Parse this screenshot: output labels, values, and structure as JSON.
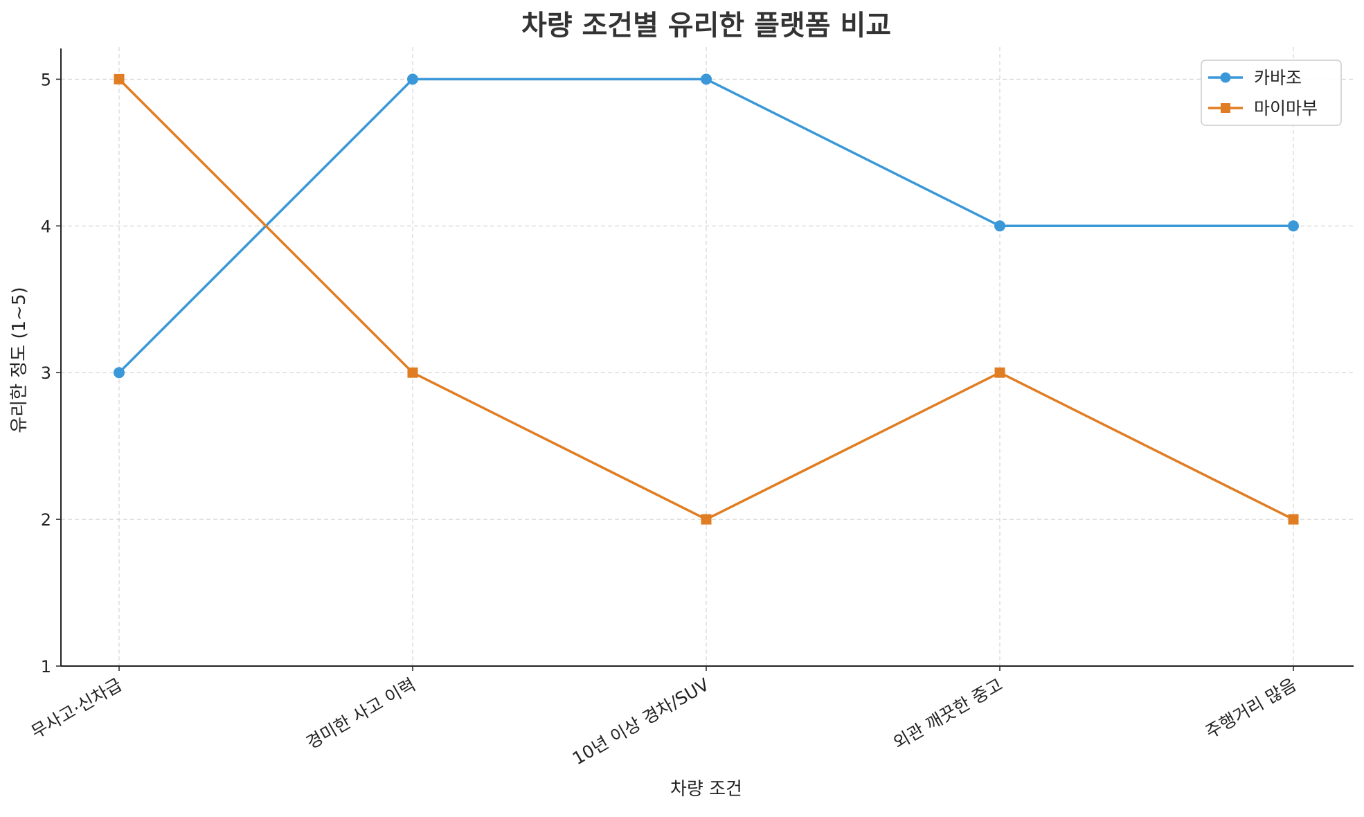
{
  "chart_data": {
    "type": "line",
    "title": "차량 조건별 유리한 플랫폼 비교",
    "xlabel": "차량 조건",
    "ylabel": "유리한 정도 (1~5)",
    "categories": [
      "무사고·신차급",
      "경미한 사고 이력",
      "10년 이상 경차/SUV",
      "외관 깨끗한 중고",
      "주행거리 많음"
    ],
    "ylim": [
      1,
      5.2
    ],
    "yticks": [
      1,
      2,
      3,
      4,
      5
    ],
    "grid": true,
    "legend_position": "top-right",
    "series": [
      {
        "name": "카바조",
        "values": [
          3,
          5,
          5,
          4,
          4
        ],
        "color": "#3a97d8",
        "marker": "circle"
      },
      {
        "name": "마이마부",
        "values": [
          5,
          3,
          2,
          3,
          2
        ],
        "color": "#e07d22",
        "marker": "square"
      }
    ]
  }
}
